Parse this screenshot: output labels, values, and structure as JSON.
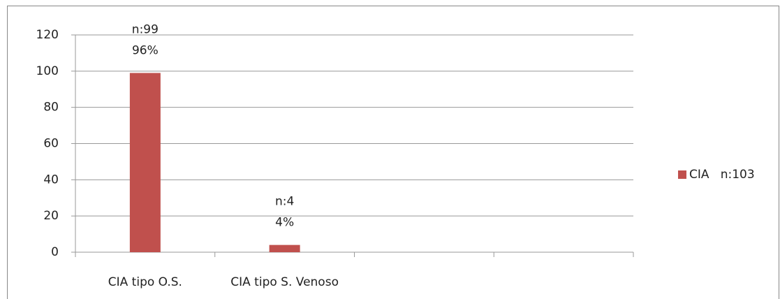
{
  "chart_data": {
    "type": "bar",
    "categories": [
      "CIA tipo O.S.",
      "CIA tipo S. Venoso",
      null,
      null
    ],
    "series": [
      {
        "name": "CIA   n:103",
        "color": "#c0504d",
        "values": [
          99,
          4,
          null,
          null
        ],
        "value_labels": [
          "n:99",
          "n:4",
          null,
          null
        ],
        "percent_labels": [
          "96%",
          "4%",
          null,
          null
        ]
      }
    ],
    "ylim": [
      0,
      120
    ],
    "yticks": [
      0,
      20,
      40,
      60,
      80,
      100,
      120
    ],
    "grid": true,
    "legend": "right"
  }
}
